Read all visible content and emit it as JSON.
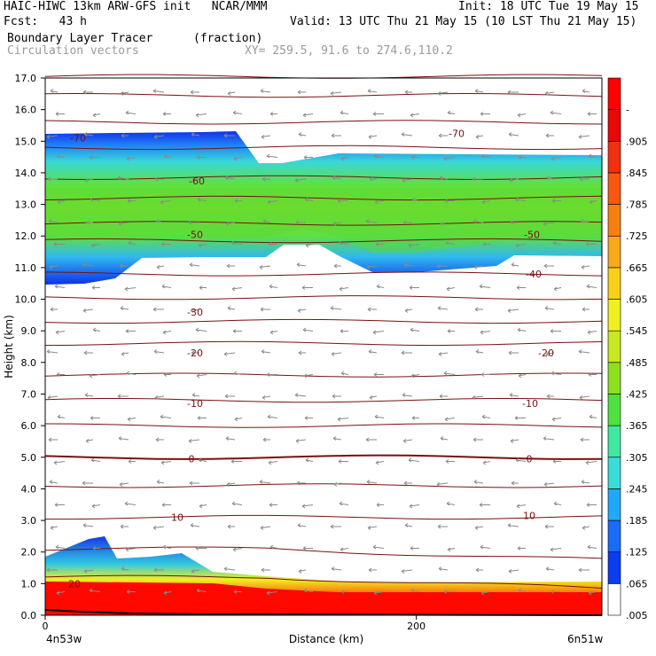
{
  "header": {
    "line1_left": "HAIC-HIWC 13km ARW-GFS init   NCAR/MMM",
    "line1_right": "Init: 18 UTC Tue 19 May 15",
    "line2_left": "Fcst:   43 h",
    "line2_right": "Valid: 13 UTC Thu 21 May 15 (10 LST Thu 21 May 15)",
    "field_name": "Boundary Layer Tracer",
    "field_units": "(fraction)",
    "vector_name": "Circulation vectors",
    "xy_range": "XY= 259.5, 91.6 to 274.6,110.2"
  },
  "chart_data": {
    "type": "heatmap",
    "title": "Boundary Layer Tracer (fraction)",
    "xlabel": "Distance (km)",
    "ylabel": "Height (km)",
    "xlim": [
      0,
      300
    ],
    "ylim": [
      0,
      17
    ],
    "x_ticks": [
      0,
      200
    ],
    "x_end_labels": {
      "left": "4n53w",
      "right": "6n51w"
    },
    "y_ticks": [
      "0.0",
      "1.0",
      "2.0",
      "3.0",
      "4.0",
      "5.0",
      "6.0",
      "7.0",
      "8.0",
      "9.0",
      "10.0",
      "11.0",
      "12.0",
      "13.0",
      "14.0",
      "15.0",
      "16.0",
      "17.0"
    ],
    "colorbar": {
      "labels": [
        ".005",
        ".065",
        ".125",
        ".185",
        ".245",
        ".305",
        ".365",
        ".425",
        ".485",
        ".545",
        ".605",
        ".665",
        ".725",
        ".785",
        ".845",
        ".905",
        "-"
      ],
      "colors": [
        "#ffffff",
        "#0a3cf0",
        "#1a6cf8",
        "#22a8f8",
        "#3adcd8",
        "#40e8a0",
        "#50e040",
        "#8ce020",
        "#c8e820",
        "#f0f020",
        "#f8d018",
        "#f8a818",
        "#f88010",
        "#f85810",
        "#f03010",
        "#e80808",
        "#ff0000"
      ]
    },
    "contour_labels": [
      "-70",
      "-70",
      "-60",
      "-50",
      "-50",
      "-40",
      "-30",
      "-20",
      "-20",
      "-10",
      "-10",
      "0",
      "0",
      "10",
      "10",
      "20"
    ]
  }
}
